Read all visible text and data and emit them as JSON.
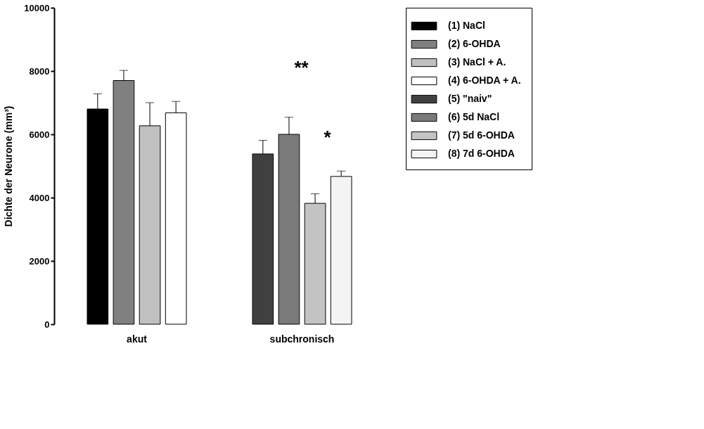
{
  "chart_data": {
    "type": "bar",
    "ylabel": "Dichte der Neurone (mm³)",
    "categories": [
      "akut",
      "subchronisch"
    ],
    "series": [
      {
        "name": "(1) NaCl",
        "color": "#000000",
        "values": [
          6800,
          null
        ],
        "errors": [
          480,
          null
        ]
      },
      {
        "name": "(2) 6-OHDA",
        "color": "#808080",
        "values": [
          7700,
          null
        ],
        "errors": [
          320,
          null
        ]
      },
      {
        "name": "(3) NaCl + A.",
        "color": "#c0c0c0",
        "values": [
          6270,
          null
        ],
        "errors": [
          730,
          null
        ]
      },
      {
        "name": "(4) 6-OHDA + A.",
        "color": "#ffffff",
        "values": [
          6680,
          null
        ],
        "errors": [
          360,
          null
        ]
      },
      {
        "name": "(5) \"naiv\"",
        "color": "#404040",
        "values": [
          null,
          5380
        ],
        "errors": [
          null,
          430
        ]
      },
      {
        "name": "(6) 5d NaCl",
        "color": "#7a7a7a",
        "values": [
          null,
          6000
        ],
        "errors": [
          null,
          540
        ]
      },
      {
        "name": "(7) 5d 6-OHDA",
        "color": "#c4c4c4",
        "values": [
          null,
          3820
        ],
        "errors": [
          null,
          300
        ]
      },
      {
        "name": "(8) 7d 6-OHDA",
        "color": "#f4f4f4",
        "values": [
          null,
          4670
        ],
        "errors": [
          null,
          170
        ]
      }
    ],
    "ylim": [
      0,
      10000
    ],
    "yticks": [
      0,
      2000,
      4000,
      6000,
      8000,
      10000
    ],
    "grid": false,
    "legend": "right",
    "annotations": [
      "**",
      "*"
    ]
  }
}
